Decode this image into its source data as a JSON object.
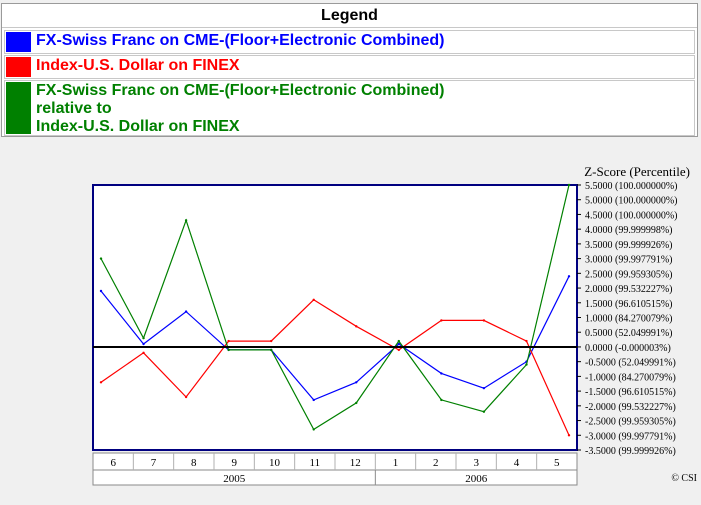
{
  "legend": {
    "title": "Legend",
    "items": [
      {
        "label": "FX-Swiss Franc on CME-(Floor+Electronic Combined)",
        "color": "#0000ff"
      },
      {
        "label": "Index-U.S. Dollar on FINEX",
        "color": "#ff0000"
      },
      {
        "label": "FX-Swiss Franc on CME-(Floor+Electronic Combined)\nrelative to\nIndex-U.S. Dollar on FINEX",
        "color": "#008000"
      }
    ]
  },
  "chart_data": {
    "type": "line",
    "ylabel": "Z-Score (Percentile)",
    "ylim": [
      -3.5,
      5.5
    ],
    "y_ticks": [
      "5.5000 (100.000000%)",
      "5.0000 (100.000000%)",
      "4.5000 (100.000000%)",
      "4.0000 (99.999998%)",
      "3.5000 (99.999926%)",
      "3.0000 (99.997791%)",
      "2.5000 (99.959305%)",
      "2.0000 (99.532227%)",
      "1.5000 (96.610515%)",
      "1.0000 (84.270079%)",
      "0.5000 (52.049991%)",
      "0.0000 (-0.000003%)",
      "-0.5000 (52.049991%)",
      "-1.0000 (84.270079%)",
      "-1.5000 (96.610515%)",
      "-2.0000 (99.532227%)",
      "-2.5000 (99.959305%)",
      "-3.0000 (99.997791%)",
      "-3.5000 (99.999926%)"
    ],
    "x_months": [
      "6",
      "7",
      "8",
      "9",
      "10",
      "11",
      "12",
      "1",
      "2",
      "3",
      "4",
      "5"
    ],
    "x_years": [
      "2005",
      "2006"
    ],
    "x": [
      "2005-06",
      "2005-07",
      "2005-08",
      "2005-09",
      "2005-10",
      "2005-11",
      "2005-12",
      "2006-01",
      "2006-02",
      "2006-03",
      "2006-04",
      "2006-05"
    ],
    "series": [
      {
        "name": "FX-Swiss Franc on CME-(Floor+Electronic Combined)",
        "color": "#0000ff",
        "values": [
          1.9,
          0.1,
          1.2,
          -0.1,
          -0.1,
          -1.8,
          -1.2,
          0.1,
          -0.9,
          -1.4,
          -0.5,
          2.4
        ]
      },
      {
        "name": "Index-U.S. Dollar on FINEX",
        "color": "#ff0000",
        "values": [
          -1.2,
          -0.2,
          -1.7,
          0.2,
          0.2,
          1.6,
          0.7,
          -0.1,
          0.9,
          0.9,
          0.2,
          -3.0
        ]
      },
      {
        "name": "FX-Swiss Franc on CME-(Floor+Electronic Combined) relative to Index-U.S. Dollar on FINEX",
        "color": "#008000",
        "values": [
          3.0,
          0.3,
          4.3,
          -0.1,
          -0.1,
          -2.8,
          -1.9,
          0.2,
          -1.8,
          -2.2,
          -0.6,
          5.5
        ]
      }
    ],
    "zero_line": true,
    "grid": false,
    "copyright": "© CSI"
  }
}
